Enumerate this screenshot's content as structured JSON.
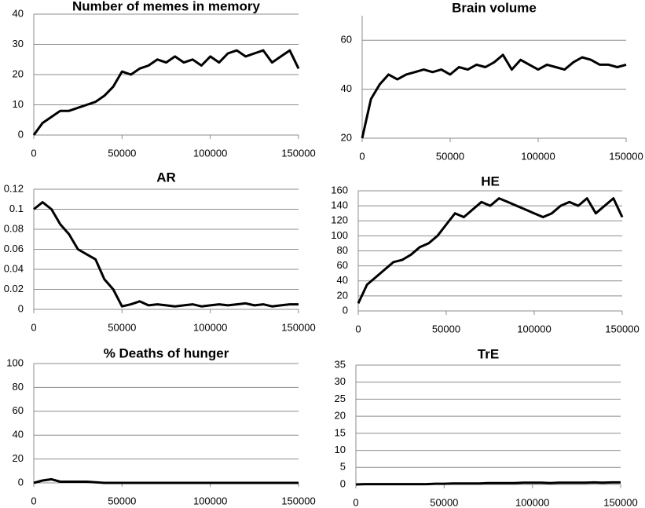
{
  "chart_data": [
    {
      "type": "line",
      "title": "Number of memes in memory",
      "x": [
        0,
        5000,
        10000,
        15000,
        20000,
        25000,
        30000,
        35000,
        40000,
        45000,
        50000,
        55000,
        60000,
        65000,
        70000,
        75000,
        80000,
        85000,
        90000,
        95000,
        100000,
        105000,
        110000,
        115000,
        120000,
        125000,
        130000,
        135000,
        140000,
        145000,
        150000
      ],
      "values": [
        0,
        4,
        6,
        8,
        8,
        9,
        10,
        11,
        13,
        16,
        21,
        20,
        22,
        23,
        25,
        24,
        26,
        24,
        25,
        23,
        26,
        24,
        27,
        28,
        26,
        27,
        28,
        24,
        26,
        28,
        22
      ],
      "color": "#000000",
      "xlim": [
        0,
        150000
      ],
      "ylim": [
        0,
        40
      ],
      "xticks": [
        0,
        50000,
        100000,
        150000
      ],
      "yticks": [
        0,
        10,
        20,
        30,
        40
      ],
      "grid": true
    },
    {
      "type": "line",
      "title": "Brain volume",
      "x": [
        0,
        5000,
        10000,
        15000,
        20000,
        25000,
        30000,
        35000,
        40000,
        45000,
        50000,
        55000,
        60000,
        65000,
        70000,
        75000,
        80000,
        85000,
        90000,
        95000,
        100000,
        105000,
        110000,
        115000,
        120000,
        125000,
        130000,
        135000,
        140000,
        145000,
        150000
      ],
      "values": [
        20,
        36,
        42,
        46,
        44,
        46,
        47,
        48,
        47,
        48,
        46,
        49,
        48,
        50,
        49,
        51,
        54,
        48,
        52,
        50,
        48,
        50,
        49,
        48,
        51,
        53,
        52,
        50,
        50,
        49,
        50
      ],
      "color": "#000000",
      "xlim": [
        0,
        150000
      ],
      "ylim": [
        20,
        70
      ],
      "xticks": [
        0,
        50000,
        100000,
        150000
      ],
      "yticks": [
        20,
        40,
        60
      ],
      "grid": true
    },
    {
      "type": "line",
      "title": "AR",
      "x": [
        0,
        5000,
        10000,
        15000,
        20000,
        25000,
        30000,
        35000,
        40000,
        45000,
        50000,
        55000,
        60000,
        65000,
        70000,
        75000,
        80000,
        85000,
        90000,
        95000,
        100000,
        105000,
        110000,
        115000,
        120000,
        125000,
        130000,
        135000,
        140000,
        145000,
        150000
      ],
      "values": [
        0.1,
        0.107,
        0.1,
        0.085,
        0.075,
        0.06,
        0.055,
        0.05,
        0.03,
        0.02,
        0.003,
        0.005,
        0.008,
        0.004,
        0.005,
        0.004,
        0.003,
        0.004,
        0.005,
        0.003,
        0.004,
        0.005,
        0.004,
        0.005,
        0.006,
        0.004,
        0.005,
        0.003,
        0.004,
        0.005,
        0.005
      ],
      "color": "#000000",
      "xlim": [
        0,
        150000
      ],
      "ylim": [
        0,
        0.12
      ],
      "xticks": [
        0,
        50000,
        100000,
        150000
      ],
      "yticks": [
        0,
        0.02,
        0.04,
        0.06,
        0.08,
        0.1,
        0.12
      ],
      "grid": true
    },
    {
      "type": "line",
      "title": "HE",
      "x": [
        0,
        5000,
        10000,
        15000,
        20000,
        25000,
        30000,
        35000,
        40000,
        45000,
        50000,
        55000,
        60000,
        65000,
        70000,
        75000,
        80000,
        85000,
        90000,
        95000,
        100000,
        105000,
        110000,
        115000,
        120000,
        125000,
        130000,
        135000,
        140000,
        145000,
        150000
      ],
      "values": [
        10,
        35,
        45,
        55,
        65,
        68,
        75,
        85,
        90,
        100,
        115,
        130,
        125,
        135,
        145,
        140,
        150,
        145,
        140,
        135,
        130,
        125,
        130,
        140,
        145,
        140,
        150,
        130,
        140,
        150,
        125
      ],
      "color": "#000000",
      "xlim": [
        0,
        150000
      ],
      "ylim": [
        0,
        160
      ],
      "xticks": [
        0,
        50000,
        100000,
        150000
      ],
      "yticks": [
        0,
        20,
        40,
        60,
        80,
        100,
        120,
        140,
        160
      ],
      "grid": true
    },
    {
      "type": "line",
      "title": "% Deaths of hunger",
      "x": [
        0,
        5000,
        10000,
        15000,
        20000,
        25000,
        30000,
        35000,
        40000,
        45000,
        50000,
        55000,
        60000,
        65000,
        70000,
        75000,
        80000,
        85000,
        90000,
        95000,
        100000,
        105000,
        110000,
        115000,
        120000,
        125000,
        130000,
        135000,
        140000,
        145000,
        150000
      ],
      "values": [
        0,
        2,
        3,
        1,
        1,
        1,
        1,
        0.5,
        0,
        0,
        0,
        0,
        0,
        0,
        0,
        0,
        0,
        0,
        0,
        0,
        0,
        0,
        0,
        0,
        0,
        0,
        0,
        0,
        0,
        0,
        0
      ],
      "color": "#000000",
      "xlim": [
        0,
        150000
      ],
      "ylim": [
        0,
        100
      ],
      "xticks": [
        0,
        50000,
        100000,
        150000
      ],
      "yticks": [
        0,
        20,
        40,
        60,
        80,
        100
      ],
      "grid": true
    },
    {
      "type": "line",
      "title": "TrE",
      "x": [
        0,
        5000,
        10000,
        15000,
        20000,
        25000,
        30000,
        35000,
        40000,
        45000,
        50000,
        55000,
        60000,
        65000,
        70000,
        75000,
        80000,
        85000,
        90000,
        95000,
        100000,
        105000,
        110000,
        115000,
        120000,
        125000,
        130000,
        135000,
        140000,
        145000,
        150000
      ],
      "values": [
        0,
        0.1,
        0.1,
        0.1,
        0.1,
        0.1,
        0.1,
        0.1,
        0.1,
        0.2,
        0.2,
        0.3,
        0.3,
        0.3,
        0.3,
        0.4,
        0.4,
        0.4,
        0.4,
        0.5,
        0.5,
        0.5,
        0.4,
        0.5,
        0.5,
        0.5,
        0.5,
        0.6,
        0.5,
        0.6,
        0.6
      ],
      "color": "#000000",
      "xlim": [
        0,
        150000
      ],
      "ylim": [
        0,
        35
      ],
      "xticks": [
        0,
        50000,
        100000,
        150000
      ],
      "yticks": [
        0,
        5,
        10,
        15,
        20,
        25,
        30,
        35
      ],
      "grid": true
    }
  ]
}
